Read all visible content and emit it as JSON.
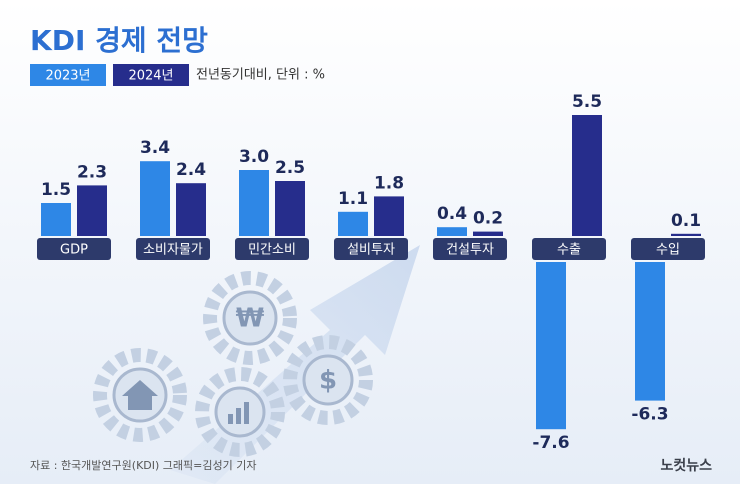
{
  "chart_data": {
    "type": "bar",
    "title": "KDI 경제 전망",
    "note": "전년동기대비, 단위 : %",
    "categories": [
      "GDP",
      "소비자물가",
      "민간소비",
      "설비투자",
      "건설투자",
      "수출",
      "수입"
    ],
    "series": [
      {
        "name": "2023년",
        "color": "#2e87e6",
        "values": [
          1.5,
          3.4,
          3.0,
          1.1,
          0.4,
          -7.6,
          -6.3
        ],
        "value_labels": [
          "1.5",
          "3.4",
          "3.0",
          "1.1",
          "0.4",
          "-7.6",
          "-6.3"
        ]
      },
      {
        "name": "2024년",
        "color": "#262d8c",
        "values": [
          2.3,
          2.4,
          2.5,
          1.8,
          0.2,
          5.5,
          0.1
        ],
        "value_labels": [
          "2.3",
          "2.4",
          "2.5",
          "1.8",
          "0.2",
          "5.5",
          "0.1"
        ]
      }
    ],
    "source": "자료 : 한국개발연구원(KDI)   그래픽=김성기 기자",
    "logo": "노컷뉴스"
  }
}
